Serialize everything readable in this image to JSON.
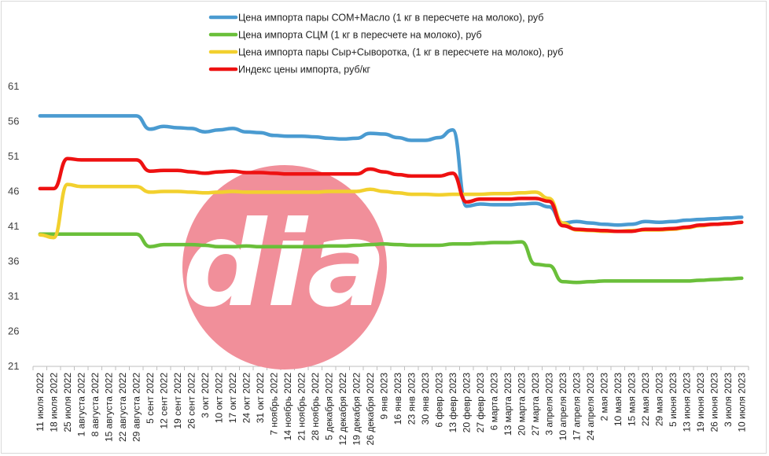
{
  "chart_data": {
    "type": "line",
    "title": "",
    "xlabel": "",
    "ylabel": "",
    "ylim": [
      21,
      61
    ],
    "yticks": [
      21,
      26,
      31,
      36,
      41,
      46,
      51,
      56,
      61
    ],
    "grid": false,
    "legend_position": "top",
    "categories": [
      "11 июля 2022",
      "18 июля 2022",
      "25 июля 2022",
      "1 августа 2022",
      "8 августа 2022",
      "15 августа 2022",
      "22 августа 2022",
      "29 августа 2022",
      "5 сент 2022",
      "12 сент 2022",
      "19 сент 2022",
      "26 сент 2022",
      "3 окт 2022",
      "10 окт 2022",
      "17 окт 2022",
      "24 окт 2022",
      "31 окт 2022",
      "7 ноябрь 2022",
      "14 ноябрь 2022",
      "21 ноябрь 2022",
      "28 ноябрь 2022",
      "5 декабря 2022",
      "12 декабря 2022",
      "19 декабря 2022",
      "26 декабря 2022",
      "9 янв 2023",
      "16 янв 2023",
      "23 янв 2023",
      "30 янв 2023",
      "6 февр 2023",
      "13 февр 2023",
      "20 февр 2023",
      "27 февр 2023",
      "6 марта 2023",
      "13 марта 2023",
      "20 марта 2023",
      "27 марта 2023",
      "3 апреля 2023",
      "10 апреля 2023",
      "17 апреля 2023",
      "24 апреля 2023",
      "2 мая 2023",
      "10 мая 2023",
      "15 мая 2023",
      "22 мая 2023",
      "29 мая 2023",
      "5 июня 2023",
      "13 июня 2023",
      "19 июня 2023",
      "26 июня 2023",
      "3 июля 2023",
      "10 июля 2023"
    ],
    "series": [
      {
        "name": "Цена импорта пары СОМ+Масло  (1 кг в пересчете на молоко), руб",
        "color": "#4a9bd1",
        "values": [
          56.8,
          56.8,
          56.8,
          56.8,
          56.8,
          56.8,
          56.8,
          56.8,
          54.9,
          55.3,
          55.1,
          55.0,
          54.5,
          54.8,
          55.0,
          54.5,
          54.4,
          54.0,
          53.9,
          53.9,
          53.8,
          53.6,
          53.5,
          53.6,
          54.3,
          54.2,
          53.7,
          53.3,
          53.3,
          53.7,
          54.8,
          43.9,
          44.2,
          44.1,
          44.1,
          44.2,
          44.3,
          43.8,
          41.5,
          41.7,
          41.5,
          41.3,
          41.2,
          41.3,
          41.7,
          41.6,
          41.7,
          41.9,
          42.0,
          42.1,
          42.2,
          42.3
        ]
      },
      {
        "name": "Цена импорта СЦМ  (1 кг в пересчете на молоко), руб",
        "color": "#6abf3a",
        "values": [
          39.9,
          39.9,
          39.9,
          39.9,
          39.9,
          39.9,
          39.9,
          39.9,
          38.1,
          38.4,
          38.4,
          38.4,
          38.3,
          38.1,
          38.1,
          38.2,
          38.1,
          38.1,
          38.1,
          38.1,
          38.1,
          38.2,
          38.2,
          38.3,
          38.4,
          38.5,
          38.4,
          38.3,
          38.3,
          38.3,
          38.5,
          38.5,
          38.6,
          38.7,
          38.7,
          38.8,
          35.6,
          35.4,
          33.1,
          33.0,
          33.1,
          33.2,
          33.2,
          33.2,
          33.2,
          33.2,
          33.2,
          33.2,
          33.3,
          33.4,
          33.5,
          33.6
        ]
      },
      {
        "name": "Цена импорта пары Сыр+Сыворотка, (1 кг в пересчете на молоко), руб",
        "color": "#f2d02e",
        "values": [
          39.8,
          39.4,
          47.0,
          46.7,
          46.7,
          46.7,
          46.7,
          46.7,
          45.9,
          46.0,
          46.0,
          45.9,
          45.8,
          45.9,
          46.0,
          45.9,
          45.9,
          45.9,
          45.9,
          45.9,
          45.9,
          46.0,
          46.0,
          46.0,
          46.3,
          46.0,
          45.8,
          45.6,
          45.6,
          45.5,
          45.6,
          45.6,
          45.6,
          45.7,
          45.7,
          45.8,
          45.9,
          45.0,
          41.5,
          40.5,
          40.4,
          40.3,
          40.3,
          40.4,
          40.5,
          40.5,
          40.6,
          40.8,
          41.1,
          41.3,
          41.4,
          41.6
        ]
      },
      {
        "name": "Индекс цены импорта, руб/кг",
        "color": "#ee1111",
        "values": [
          46.4,
          46.4,
          50.7,
          50.5,
          50.5,
          50.5,
          50.5,
          50.5,
          48.9,
          49.0,
          49.0,
          48.8,
          48.6,
          48.8,
          48.9,
          48.7,
          48.7,
          48.6,
          48.5,
          48.5,
          48.5,
          48.5,
          48.5,
          48.5,
          49.2,
          48.8,
          48.4,
          48.2,
          48.2,
          48.2,
          48.6,
          44.5,
          44.9,
          44.9,
          44.9,
          45.0,
          45.0,
          44.6,
          41.1,
          40.6,
          40.5,
          40.4,
          40.3,
          40.3,
          40.6,
          40.6,
          40.7,
          40.9,
          41.2,
          41.3,
          41.4,
          41.6
        ]
      }
    ]
  },
  "watermark": {
    "text": "dia",
    "circle_color": "#f18f9a",
    "text_color": "#ffffff"
  }
}
